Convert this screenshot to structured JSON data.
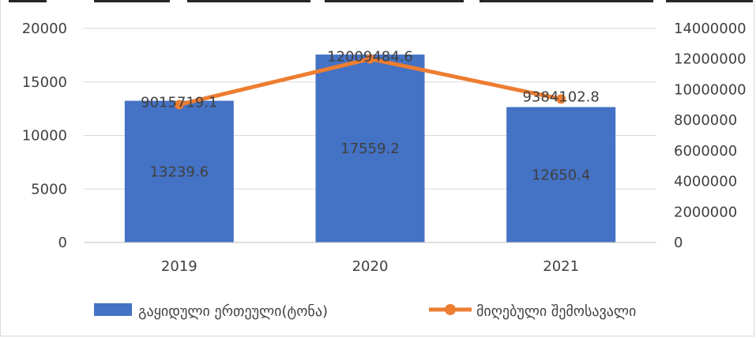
{
  "chart_data": {
    "type": "bar",
    "categories": [
      "2019",
      "2020",
      "2021"
    ],
    "series": [
      {
        "name": "გაყიდული ერთეული(ტონა)",
        "type": "bar",
        "axis": "left",
        "color": "#4472C4",
        "values": [
          13239.6,
          17559.2,
          12650.4
        ],
        "labels": [
          "13239.6",
          "17559.2",
          "12650.4"
        ]
      },
      {
        "name": "მიღებული შემოსავალი",
        "type": "line",
        "axis": "right",
        "color": "#ED7D31",
        "marker": "circle",
        "values": [
          9015719.1,
          12009484.6,
          9384102.8
        ],
        "labels": [
          "9015719.1",
          "12009484.6",
          "9384102.8"
        ]
      }
    ],
    "y_left": {
      "ylim": [
        0,
        20000
      ],
      "ticks": [
        0,
        5000,
        10000,
        15000,
        20000
      ],
      "tick_labels": [
        "0",
        "5000",
        "10000",
        "15000",
        "20000"
      ]
    },
    "y_right": {
      "ylim": [
        0,
        14000000
      ],
      "ticks": [
        0,
        2000000,
        4000000,
        6000000,
        8000000,
        10000000,
        12000000,
        14000000
      ],
      "tick_labels": [
        "0",
        "2000000",
        "4000000",
        "6000000",
        "8000000",
        "10000000",
        "12000000",
        "14000000"
      ]
    },
    "grid": true,
    "legend_position": "bottom",
    "title": "",
    "xlabel": "",
    "ylabel": ""
  }
}
